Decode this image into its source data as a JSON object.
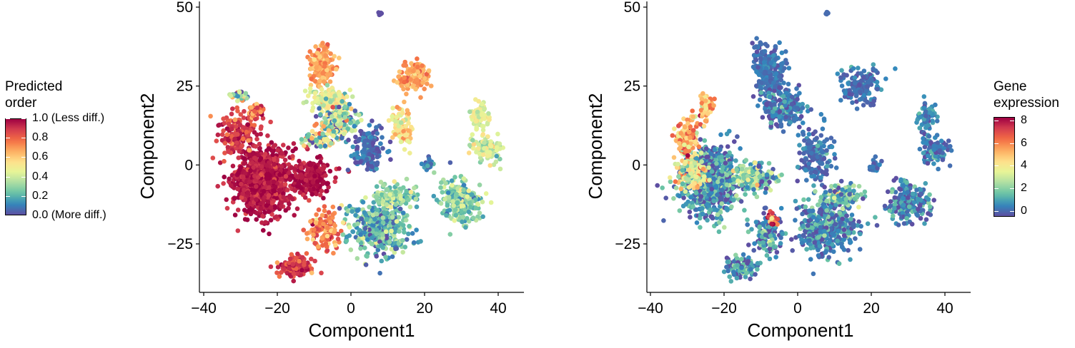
{
  "chart_data": [
    {
      "type": "scatter",
      "xlabel": "Component1",
      "ylabel": "Component2",
      "xlim": [
        -41,
        47
      ],
      "ylim": [
        -40,
        52
      ],
      "xticks": [
        -40,
        -20,
        0,
        20,
        40
      ],
      "xtick_labels": [
        "−40",
        "−20",
        "0",
        "20",
        "40"
      ],
      "yticks": [
        -25,
        0,
        25,
        50
      ],
      "ytick_labels": [
        "−25",
        "0",
        "25",
        "50"
      ],
      "grid": false,
      "legend_placement": "left",
      "legend": {
        "title": "Predicted\norder",
        "scale": "spectral",
        "range": [
          0,
          1
        ],
        "tick_values": [
          1.0,
          0.8,
          0.6,
          0.4,
          0.2,
          0.0
        ],
        "tick_labels": [
          "1.0 (Less diff.)",
          "0.8",
          "0.6",
          "0.4",
          "0.2",
          "0.0 (More diff.)"
        ]
      },
      "clusters": [
        {
          "center": [
            -24,
            -5
          ],
          "spread": [
            7,
            10
          ],
          "n": 900,
          "value": 0.96,
          "jitter": 0.05
        },
        {
          "center": [
            -31,
            10
          ],
          "spread": [
            4,
            6
          ],
          "n": 150,
          "value": 0.88,
          "jitter": 0.08
        },
        {
          "center": [
            -26,
            17
          ],
          "spread": [
            2,
            3
          ],
          "n": 50,
          "value": 0.78,
          "jitter": 0.1
        },
        {
          "center": [
            -30,
            22
          ],
          "spread": [
            2.5,
            1.5
          ],
          "n": 40,
          "value": 0.4,
          "jitter": 0.2
        },
        {
          "center": [
            -11,
            -4
          ],
          "spread": [
            5,
            5
          ],
          "n": 240,
          "value": 0.97,
          "jitter": 0.04
        },
        {
          "center": [
            -15,
            -32
          ],
          "spread": [
            4,
            3
          ],
          "n": 130,
          "value": 0.88,
          "jitter": 0.08
        },
        {
          "center": [
            -7,
            -21
          ],
          "spread": [
            4,
            6
          ],
          "n": 130,
          "value": 0.75,
          "jitter": 0.1
        },
        {
          "center": [
            -8,
            31
          ],
          "spread": [
            3,
            6
          ],
          "n": 180,
          "value": 0.68,
          "jitter": 0.06
        },
        {
          "center": [
            -6,
            21
          ],
          "spread": [
            4,
            3
          ],
          "n": 150,
          "value": 0.45,
          "jitter": 0.08
        },
        {
          "center": [
            -3,
            14
          ],
          "spread": [
            5,
            5
          ],
          "n": 160,
          "value": 0.3,
          "jitter": 0.2
        },
        {
          "center": [
            -9,
            8
          ],
          "spread": [
            4,
            3
          ],
          "n": 80,
          "value": 0.42,
          "jitter": 0.3
        },
        {
          "center": [
            5,
            5
          ],
          "spread": [
            4,
            6
          ],
          "n": 160,
          "value": 0.05,
          "jitter": 0.05
        },
        {
          "center": [
            17,
            28
          ],
          "spread": [
            4,
            4
          ],
          "n": 120,
          "value": 0.68,
          "jitter": 0.07
        },
        {
          "center": [
            14,
            12
          ],
          "spread": [
            2.5,
            6
          ],
          "n": 80,
          "value": 0.55,
          "jitter": 0.1
        },
        {
          "center": [
            21,
            0
          ],
          "spread": [
            1.5,
            2
          ],
          "n": 25,
          "value": 0.1,
          "jitter": 0.1
        },
        {
          "center": [
            8,
            -20
          ],
          "spread": [
            7,
            8
          ],
          "n": 420,
          "value": 0.2,
          "jitter": 0.12
        },
        {
          "center": [
            12,
            -10
          ],
          "spread": [
            5,
            3
          ],
          "n": 150,
          "value": 0.3,
          "jitter": 0.1
        },
        {
          "center": [
            30,
            -12
          ],
          "spread": [
            5,
            6
          ],
          "n": 230,
          "value": 0.28,
          "jitter": 0.1
        },
        {
          "center": [
            35,
            15
          ],
          "spread": [
            2,
            4
          ],
          "n": 70,
          "value": 0.45,
          "jitter": 0.07
        },
        {
          "center": [
            37,
            5
          ],
          "spread": [
            4,
            4
          ],
          "n": 90,
          "value": 0.42,
          "jitter": 0.08
        },
        {
          "center": [
            8,
            48
          ],
          "spread": [
            0.4,
            0.5
          ],
          "n": 6,
          "value": 0.0,
          "jitter": 0.0
        }
      ]
    },
    {
      "type": "scatter",
      "xlabel": "Component1",
      "ylabel": "Component2",
      "xlim": [
        -41,
        47
      ],
      "ylim": [
        -40,
        52
      ],
      "xticks": [
        -40,
        -20,
        0,
        20,
        40
      ],
      "xtick_labels": [
        "−40",
        "−20",
        "0",
        "20",
        "40"
      ],
      "yticks": [
        -25,
        0,
        25,
        50
      ],
      "ytick_labels": [
        "−25",
        "0",
        "25",
        "50"
      ],
      "grid": false,
      "legend_placement": "right",
      "legend": {
        "title": "Gene\nexpression",
        "scale": "spectral",
        "range": [
          -0.5,
          8.3
        ],
        "tick_values": [
          8,
          6,
          4,
          2,
          0
        ],
        "tick_labels": [
          "8",
          "6",
          "4",
          "2",
          "0"
        ]
      },
      "clusters": [
        {
          "center": [
            -24,
            -5
          ],
          "spread": [
            7,
            10
          ],
          "n": 700,
          "value": 0.5,
          "jitter": 1.0
        },
        {
          "center": [
            -30,
            8
          ],
          "spread": [
            3,
            6
          ],
          "n": 140,
          "value": 5.5,
          "jitter": 1.2
        },
        {
          "center": [
            -25,
            18
          ],
          "spread": [
            2,
            4
          ],
          "n": 50,
          "value": 5.0,
          "jitter": 1.2
        },
        {
          "center": [
            -29,
            -3
          ],
          "spread": [
            4,
            4
          ],
          "n": 120,
          "value": 3.8,
          "jitter": 1.3
        },
        {
          "center": [
            -12,
            -4
          ],
          "spread": [
            5,
            4
          ],
          "n": 180,
          "value": 1.8,
          "jitter": 1.2
        },
        {
          "center": [
            -15,
            -32
          ],
          "spread": [
            4,
            3
          ],
          "n": 110,
          "value": 0.6,
          "jitter": 1.0
        },
        {
          "center": [
            -8,
            -22
          ],
          "spread": [
            4,
            6
          ],
          "n": 120,
          "value": 0.4,
          "jitter": 1.0
        },
        {
          "center": [
            -8,
            30
          ],
          "spread": [
            4,
            7
          ],
          "n": 220,
          "value": 0.1,
          "jitter": 0.3
        },
        {
          "center": [
            -4,
            18
          ],
          "spread": [
            5,
            5
          ],
          "n": 220,
          "value": 0.2,
          "jitter": 0.6
        },
        {
          "center": [
            5,
            3
          ],
          "spread": [
            4,
            7
          ],
          "n": 160,
          "value": 0.2,
          "jitter": 0.4
        },
        {
          "center": [
            17,
            25
          ],
          "spread": [
            5,
            6
          ],
          "n": 140,
          "value": 0.1,
          "jitter": 0.4
        },
        {
          "center": [
            21,
            0
          ],
          "spread": [
            1.5,
            2
          ],
          "n": 25,
          "value": 0.1,
          "jitter": 0.2
        },
        {
          "center": [
            8,
            -20
          ],
          "spread": [
            7,
            8
          ],
          "n": 420,
          "value": 0.3,
          "jitter": 0.8
        },
        {
          "center": [
            12,
            -10
          ],
          "spread": [
            5,
            3
          ],
          "n": 150,
          "value": 1.2,
          "jitter": 1.2
        },
        {
          "center": [
            30,
            -12
          ],
          "spread": [
            5,
            6
          ],
          "n": 220,
          "value": 0.3,
          "jitter": 0.8
        },
        {
          "center": [
            35,
            15
          ],
          "spread": [
            2,
            4
          ],
          "n": 70,
          "value": 0.4,
          "jitter": 0.6
        },
        {
          "center": [
            37,
            5
          ],
          "spread": [
            4,
            4
          ],
          "n": 90,
          "value": 0.3,
          "jitter": 0.6
        },
        {
          "center": [
            -7,
            -17
          ],
          "spread": [
            1.5,
            2
          ],
          "n": 25,
          "value": 6.5,
          "jitter": 1.5
        },
        {
          "center": [
            8,
            48
          ],
          "spread": [
            0.4,
            0.5
          ],
          "n": 6,
          "value": 0.0,
          "jitter": 0.0
        }
      ]
    }
  ]
}
